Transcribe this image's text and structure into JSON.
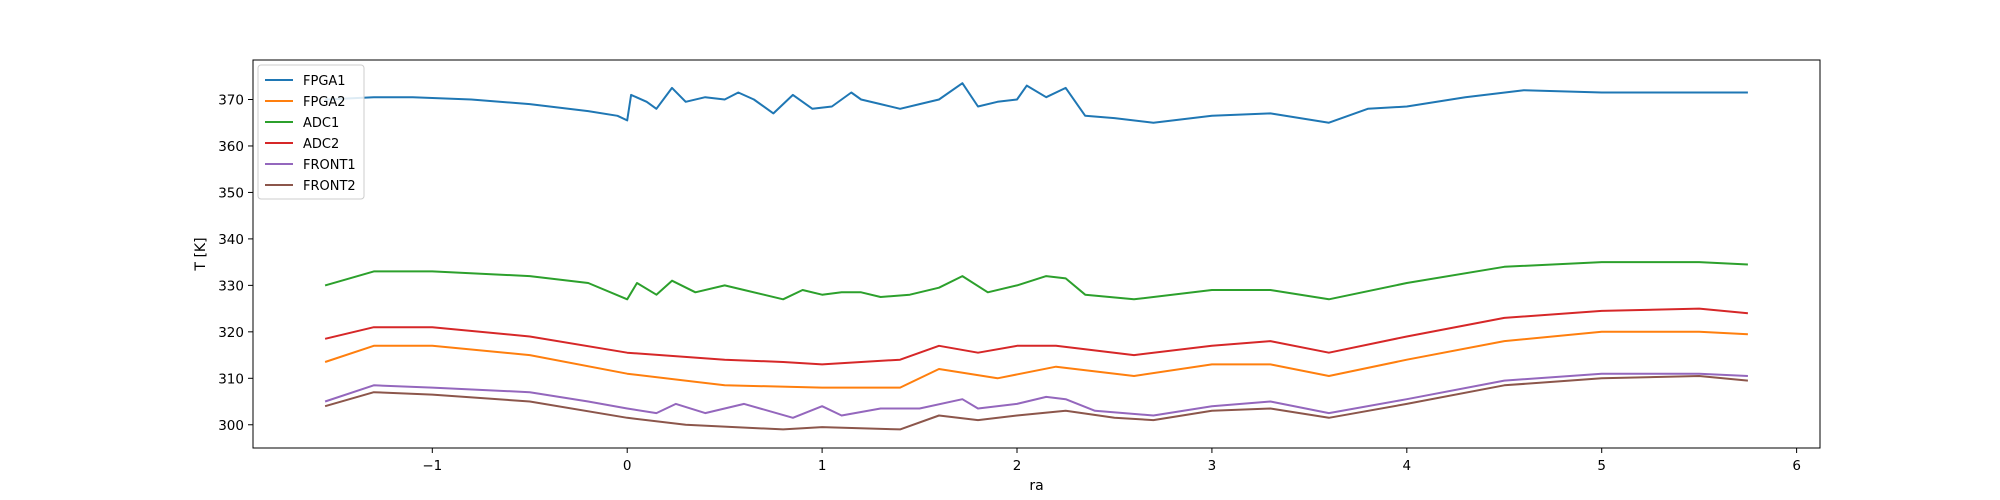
{
  "chart_data": {
    "type": "line",
    "title": "",
    "xlabel": "ra",
    "ylabel": "T [K]",
    "xlim": [
      -1.92,
      6.12
    ],
    "ylim": [
      295.0,
      378.5
    ],
    "xticks": [
      -1,
      0,
      1,
      2,
      3,
      4,
      5,
      6
    ],
    "xtick_labels": [
      "−1",
      "0",
      "1",
      "2",
      "3",
      "4",
      "5",
      "6"
    ],
    "yticks": [
      300,
      310,
      320,
      330,
      340,
      350,
      360,
      370
    ],
    "ytick_labels": [
      "300",
      "310",
      "320",
      "330",
      "340",
      "350",
      "360",
      "370"
    ],
    "grid": false,
    "legend_position": "top-left",
    "series": [
      {
        "name": "FPGA1",
        "color": "#1f77b4",
        "x": [
          -1.55,
          -1.3,
          -1.1,
          -0.8,
          -0.5,
          -0.2,
          -0.05,
          0.0,
          0.02,
          0.1,
          0.15,
          0.23,
          0.3,
          0.4,
          0.5,
          0.57,
          0.65,
          0.75,
          0.85,
          0.95,
          1.05,
          1.15,
          1.2,
          1.3,
          1.4,
          1.5,
          1.6,
          1.72,
          1.8,
          1.9,
          2.0,
          2.05,
          2.15,
          2.25,
          2.35,
          2.5,
          2.7,
          3.0,
          3.3,
          3.6,
          3.8,
          4.0,
          4.3,
          4.6,
          5.0,
          5.5,
          5.75
        ],
        "y": [
          370.0,
          370.5,
          370.5,
          370.0,
          369.0,
          367.5,
          366.5,
          365.5,
          371.0,
          369.5,
          368.0,
          372.5,
          369.5,
          370.5,
          370.0,
          371.5,
          370.0,
          367.0,
          371.0,
          368.0,
          368.5,
          371.5,
          370.0,
          369.0,
          368.0,
          369.0,
          370.0,
          373.5,
          368.5,
          369.5,
          370.0,
          373.0,
          370.5,
          372.5,
          366.5,
          366.0,
          365.0,
          366.5,
          367.0,
          365.0,
          368.0,
          368.5,
          370.5,
          372.0,
          371.5,
          371.5,
          371.5
        ]
      },
      {
        "name": "FPGA2",
        "color": "#ff7f0e",
        "x": [
          -1.55,
          -1.3,
          -1.0,
          -0.5,
          0.0,
          0.5,
          1.0,
          1.4,
          1.6,
          1.9,
          2.2,
          2.6,
          3.0,
          3.3,
          3.6,
          4.0,
          4.5,
          5.0,
          5.5,
          5.75
        ],
        "y": [
          313.5,
          317.0,
          317.0,
          315.0,
          311.0,
          308.5,
          308.0,
          308.0,
          312.0,
          310.0,
          312.5,
          310.5,
          313.0,
          313.0,
          310.5,
          314.0,
          318.0,
          320.0,
          320.0,
          319.5
        ]
      },
      {
        "name": "ADC1",
        "color": "#2ca02c",
        "x": [
          -1.55,
          -1.3,
          -1.0,
          -0.5,
          -0.2,
          0.0,
          0.05,
          0.15,
          0.23,
          0.35,
          0.5,
          0.6,
          0.8,
          0.9,
          1.0,
          1.1,
          1.2,
          1.3,
          1.45,
          1.6,
          1.72,
          1.85,
          2.0,
          2.15,
          2.25,
          2.35,
          2.6,
          3.0,
          3.3,
          3.6,
          4.0,
          4.5,
          5.0,
          5.5,
          5.75
        ],
        "y": [
          330.0,
          333.0,
          333.0,
          332.0,
          330.5,
          327.0,
          330.5,
          328.0,
          331.0,
          328.5,
          330.0,
          329.0,
          327.0,
          329.0,
          328.0,
          328.5,
          328.5,
          327.5,
          328.0,
          329.5,
          332.0,
          328.5,
          330.0,
          332.0,
          331.5,
          328.0,
          327.0,
          329.0,
          329.0,
          327.0,
          330.5,
          334.0,
          335.0,
          335.0,
          334.5
        ]
      },
      {
        "name": "ADC2",
        "color": "#d62728",
        "x": [
          -1.55,
          -1.3,
          -1.0,
          -0.5,
          0.0,
          0.5,
          0.8,
          1.0,
          1.4,
          1.6,
          1.8,
          2.0,
          2.2,
          2.6,
          3.0,
          3.3,
          3.6,
          4.0,
          4.5,
          5.0,
          5.5,
          5.75
        ],
        "y": [
          318.5,
          321.0,
          321.0,
          319.0,
          315.5,
          314.0,
          313.5,
          313.0,
          314.0,
          317.0,
          315.5,
          317.0,
          317.0,
          315.0,
          317.0,
          318.0,
          315.5,
          319.0,
          323.0,
          324.5,
          325.0,
          324.0
        ]
      },
      {
        "name": "FRONT1",
        "color": "#9467bd",
        "x": [
          -1.55,
          -1.3,
          -1.0,
          -0.5,
          -0.2,
          0.0,
          0.15,
          0.25,
          0.4,
          0.6,
          0.85,
          1.0,
          1.1,
          1.3,
          1.5,
          1.72,
          1.8,
          2.0,
          2.15,
          2.25,
          2.4,
          2.7,
          3.0,
          3.3,
          3.6,
          4.0,
          4.5,
          5.0,
          5.5,
          5.75
        ],
        "y": [
          305.0,
          308.5,
          308.0,
          307.0,
          305.0,
          303.5,
          302.5,
          304.5,
          302.5,
          304.5,
          301.5,
          304.0,
          302.0,
          303.5,
          303.5,
          305.5,
          303.5,
          304.5,
          306.0,
          305.5,
          303.0,
          302.0,
          304.0,
          305.0,
          302.5,
          305.5,
          309.5,
          311.0,
          311.0,
          310.5
        ]
      },
      {
        "name": "FRONT2",
        "color": "#8c564b",
        "x": [
          -1.55,
          -1.3,
          -1.0,
          -0.5,
          0.0,
          0.3,
          0.8,
          1.0,
          1.4,
          1.6,
          1.8,
          2.0,
          2.25,
          2.5,
          2.7,
          3.0,
          3.3,
          3.6,
          4.0,
          4.5,
          5.0,
          5.5,
          5.75
        ],
        "y": [
          304.0,
          307.0,
          306.5,
          305.0,
          301.5,
          300.0,
          299.0,
          299.5,
          299.0,
          302.0,
          301.0,
          302.0,
          303.0,
          301.5,
          301.0,
          303.0,
          303.5,
          301.5,
          304.5,
          308.5,
          310.0,
          310.5,
          309.5
        ]
      }
    ]
  }
}
